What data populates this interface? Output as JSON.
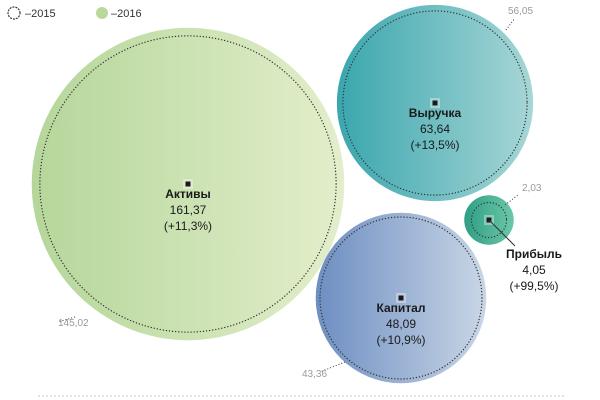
{
  "chart_data": {
    "type": "bubble",
    "legend": {
      "placement": "top-left",
      "items": [
        {
          "label": "–2015",
          "style": "dotted-outline"
        },
        {
          "label": "–2016",
          "style": "filled",
          "color": "#b9d99b"
        }
      ]
    },
    "series": [
      {
        "name": "2015",
        "style": "dotted"
      },
      {
        "name": "2016",
        "style": "filled"
      }
    ],
    "items": [
      {
        "id": "assets",
        "label": "Активы",
        "value_2016": 161.37,
        "value_2016_text": "161,37",
        "change_text": "(+11,3%)",
        "value_2015": 145.02,
        "value_2015_text": "145,02",
        "color_light": "#e3eecb",
        "color_dark": "#b5d69a"
      },
      {
        "id": "revenue",
        "label": "Выручка",
        "value_2016": 63.64,
        "value_2016_text": "63,64",
        "change_text": "(+13,5%)",
        "value_2015": 56.05,
        "value_2015_text": "56,05",
        "color_light": "#a7d6d6",
        "color_dark": "#3aa6ae"
      },
      {
        "id": "profit",
        "label": "Прибыль",
        "value_2016": 4.05,
        "value_2016_text": "4,05",
        "change_text": "(+99,5%)",
        "value_2015": 2.03,
        "value_2015_text": "2,03",
        "color_light": "#6cc7a9",
        "color_dark": "#2f9e84"
      },
      {
        "id": "capital",
        "label": "Капитал",
        "value_2016": 48.09,
        "value_2016_text": "48,09",
        "change_text": "(+10,9%)",
        "value_2015": 43.36,
        "value_2015_text": "43,36",
        "color_light": "#c9d6e6",
        "color_dark": "#6d8ec2"
      }
    ],
    "colors": {
      "dotted_outline": "#333333",
      "center_marker": "#1a1a1a",
      "leader_line": "#333333",
      "prev_label": "#9a9a9a",
      "baseline": "#c9c9c9"
    }
  }
}
